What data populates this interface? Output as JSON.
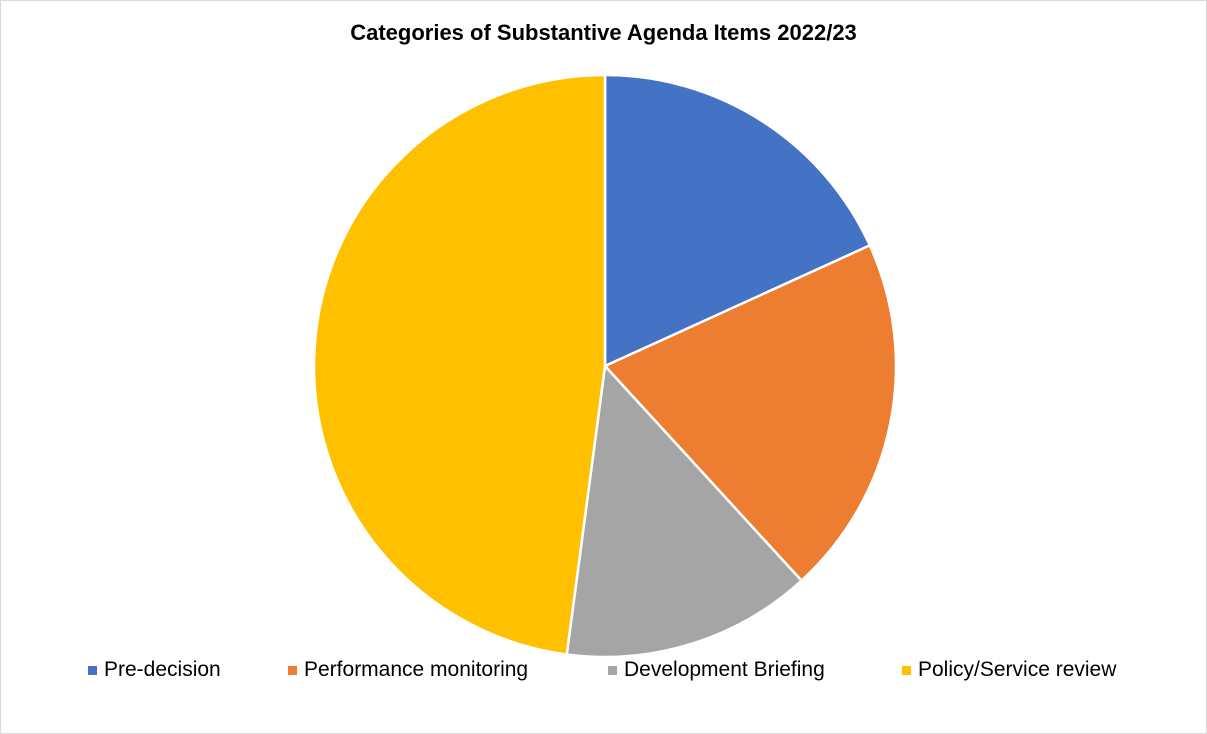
{
  "chart_data": {
    "type": "pie",
    "title": "Categories of Substantive Agenda Items 2022/23",
    "categories": [
      "Pre-decision",
      "Performance monitoring",
      "Development Briefing",
      "Policy/Service review"
    ],
    "values": [
      18.2,
      20.0,
      13.9,
      47.9
    ],
    "colors": [
      "#4472C4",
      "#ED7D31",
      "#A5A5A5",
      "#FFC000"
    ],
    "start_angle": "12 o'clock",
    "direction": "clockwise",
    "legend_position": "bottom"
  }
}
